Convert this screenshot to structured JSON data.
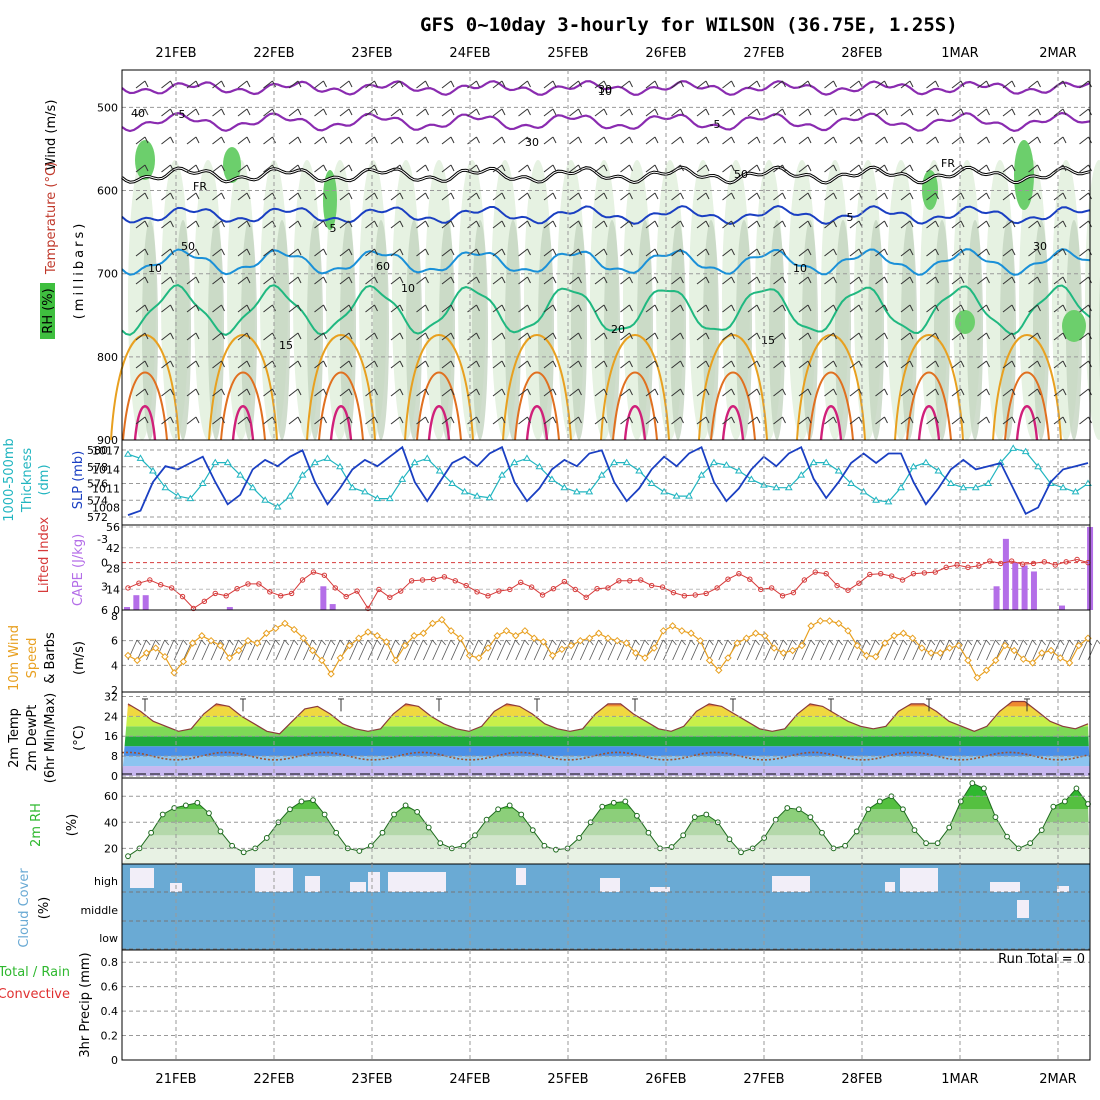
{
  "title": "GFS 0~10day 3-hourly for WILSON (36.75E, 1.25S)",
  "dates": [
    "21FEB",
    "22FEB",
    "23FEB",
    "24FEB",
    "25FEB",
    "26FEB",
    "27FEB",
    "28FEB",
    "1MAR",
    "2MAR"
  ],
  "colors": {
    "wind_label": "#000000",
    "temperature_label": "#c0392b",
    "rh_green": "#3fbf3f",
    "slp": "#1a3fc2",
    "thickness": "#21b5c0",
    "lifted_index": "#d63a3a",
    "cape": "#b46ee8",
    "wind_speed": "#e8a020",
    "rh2m": "#2fb82f",
    "cloud": "#6aaad4",
    "rain": "#2fb82f",
    "convective": "#e03030"
  },
  "panels": {
    "upper": {
      "label_wind": "Wind (m/s)",
      "label_temperature": "Temperature (°C)",
      "label_rh": "RH (%)",
      "label_millibars": "(millibars)",
      "yticks": [
        "500",
        "600",
        "700",
        "800",
        "900"
      ],
      "contour_labels": [
        "-5",
        "-5",
        "FR",
        "FR",
        "5",
        "5",
        "10",
        "10",
        "10",
        "15",
        "15",
        "20"
      ],
      "rh_labels": [
        "40",
        "50",
        "30",
        "60",
        "50",
        "30",
        "30",
        "10"
      ]
    },
    "slp": {
      "label_thickness": "Thickness",
      "label_1000_500": "1000-500mb",
      "label_dm": "(dm)",
      "label_slp": "SLP (mb)",
      "yticks_left": [
        "580",
        "578",
        "576",
        "574",
        "572"
      ],
      "yticks_right": [
        "1017",
        "1014",
        "1011",
        "1008"
      ]
    },
    "cape": {
      "label_li": "Lifted Index",
      "label_cape": "CAPE (J/kg)",
      "yticks_left": [
        "-3",
        "0",
        "3",
        "6"
      ],
      "yticks_right": [
        "56",
        "42",
        "28",
        "14",
        "0"
      ]
    },
    "wind10": {
      "label_10m": "10m Wind",
      "label_speed": "Speed",
      "label_barbs": "& Barbs",
      "label_unit": "(m/s)",
      "yticks": [
        "8",
        "6",
        "4",
        "2"
      ]
    },
    "temp2m": {
      "label_temp": "2m Temp",
      "label_dew": "2m DewPt",
      "label_minmax": "(6hr Min/Max)",
      "label_unit": "(°C)",
      "yticks": [
        "32",
        "24",
        "16",
        "8",
        "0"
      ]
    },
    "rh2m": {
      "label": "2m RH",
      "label_unit": "(%)",
      "yticks": [
        "60",
        "40",
        "20"
      ]
    },
    "cloud": {
      "label": "Cloud Cover",
      "label_unit": "(%)",
      "levels": [
        "high",
        "middle",
        "low"
      ]
    },
    "precip": {
      "label_total": "Total / Rain",
      "label_conv": "Convective",
      "label_unit": "3hr Precip (mm)",
      "yticks": [
        "0.8",
        "0.6",
        "0.4",
        "0.2",
        "0"
      ],
      "run_total": "Run Total = 0"
    }
  },
  "chart_data": [
    {
      "type": "line",
      "title": "SLP (mb) and 1000-500mb Thickness (dm)",
      "x_unit": "3-hourly steps from 20FEB 12Z",
      "series": [
        {
          "name": "SLP (mb)",
          "axis": "right",
          "ylim": [
            1006,
            1018
          ],
          "values": [
            1006.8,
            1007.5,
            1012,
            1014.5,
            1014,
            1015,
            1016,
            1012,
            1008.5,
            1010,
            1014,
            1015.5,
            1014.5,
            1016,
            1017,
            1012,
            1008.5,
            1011,
            1014,
            1015.5,
            1014.5,
            1016,
            1017.5,
            1012,
            1009,
            1012,
            1015,
            1016,
            1014.5,
            1016.5,
            1017.5,
            1012,
            1009,
            1011,
            1014,
            1015.5,
            1014.5,
            1016.5,
            1017,
            1012,
            1009,
            1011,
            1014,
            1016,
            1014.5,
            1016.5,
            1017.5,
            1012,
            1009,
            1011,
            1014,
            1016,
            1014.5,
            1016.5,
            1017.5,
            1012.5,
            1009.5,
            1012,
            1015,
            1016.5,
            1015,
            1016.5,
            1016.5,
            1012,
            1008.5,
            1011,
            1014,
            1015.5,
            1014,
            1014.5,
            1015,
            1011,
            1007,
            1008,
            1012,
            1014,
            1014.5,
            1015
          ]
        },
        {
          "name": "1000-500mb Thickness (dm)",
          "axis": "left",
          "ylim": [
            572,
            581
          ],
          "values": [
            579.5,
            579,
            577.5,
            575.5,
            574.5,
            574.2,
            576,
            578.5,
            578.5,
            577,
            575.5,
            574,
            573.2,
            574.5,
            577,
            578.5,
            579,
            578,
            575.5,
            575,
            574.2,
            574.2,
            576.5,
            578.5,
            579,
            577.5,
            576,
            575,
            574.5,
            574.3,
            577,
            578.5,
            579,
            578,
            576.5,
            575.5,
            575,
            575,
            577,
            578.5,
            578.5,
            577.5,
            576,
            575,
            574.5,
            574.5,
            577,
            578.5,
            578.2,
            577.5,
            576.5,
            575.8,
            575.5,
            575.5,
            577,
            578.5,
            578.5,
            577.5,
            576,
            575,
            574,
            573.8,
            575.5,
            578,
            578.5,
            577.5,
            576,
            575.5,
            575.5,
            576,
            578.5,
            580.2,
            579.8,
            578,
            576,
            575.5,
            575,
            576
          ]
        }
      ]
    },
    {
      "type": "bar",
      "title": "CAPE (J/kg) and Lifted Index",
      "ylabel": "CAPE (J/kg)",
      "ylim": [
        0,
        56
      ],
      "bars": [
        [
          0,
          2
        ],
        [
          1,
          10
        ],
        [
          2,
          10
        ],
        [
          11,
          2
        ],
        [
          21,
          16
        ],
        [
          22,
          4
        ],
        [
          93,
          16
        ],
        [
          94,
          48
        ],
        [
          95,
          32
        ],
        [
          96,
          30
        ],
        [
          97,
          26
        ],
        [
          100,
          3
        ],
        [
          103,
          56
        ]
      ],
      "lifted_index": {
        "ylim": [
          -3.5,
          6
        ],
        "values": [
          3.2,
          2.6,
          2.2,
          2.8,
          3.2,
          4.3,
          5.8,
          4.9,
          3.9,
          4.2,
          3.3,
          2.7,
          2.7,
          3.7,
          4.2,
          3.9,
          2.2,
          1.2,
          1.6,
          3.2,
          4.3,
          3.6,
          5.8,
          3.4,
          4.4,
          3.6,
          2.3,
          2.2,
          2.1,
          1.8,
          2.3,
          2.9,
          3.7,
          4.2,
          3.6,
          3.4,
          2.5,
          3.1,
          4.1,
          3.3,
          2.4,
          3.4,
          4.4,
          3.3,
          3.2,
          2.3,
          2.3,
          2.2,
          2.9,
          3.1,
          3.8,
          4.2,
          4.1,
          3.9,
          3.2,
          2.1,
          1.4,
          2.1,
          3.4,
          3.2,
          4.2,
          3.8,
          2.2,
          1.2,
          1.4,
          2.9,
          3.5,
          2.6,
          1.5,
          1.4,
          1.7,
          2.2,
          1.4,
          1.3,
          1.2,
          0.6,
          0.3,
          0.6,
          0.4,
          -0.2,
          0.1,
          -0.2,
          0.2,
          0.1,
          -0.1,
          0.3,
          -0.1,
          -0.4,
          0.0
        ]
      }
    },
    {
      "type": "line",
      "title": "10m Wind Speed (m/s)",
      "ylim": [
        2,
        8
      ],
      "values": [
        4.8,
        4.4,
        5.0,
        5.4,
        4.7,
        3.4,
        4.3,
        5.8,
        6.4,
        6.0,
        5.6,
        4.6,
        5.2,
        6.0,
        5.8,
        6.6,
        7.0,
        7.4,
        6.9,
        6.2,
        5.2,
        4.4,
        3.3,
        4.6,
        5.6,
        6.2,
        6.7,
        6.4,
        5.9,
        4.4,
        5.6,
        6.4,
        6.6,
        7.4,
        7.7,
        6.8,
        6.2,
        4.8,
        4.6,
        5.4,
        6.4,
        6.8,
        6.4,
        6.8,
        6.2,
        5.9,
        4.8,
        5.3,
        5.6,
        6.0,
        6.2,
        6.6,
        6.2,
        6.0,
        5.8,
        5.0,
        4.6,
        5.4,
        6.8,
        7.2,
        6.8,
        6.6,
        6.0,
        4.4,
        3.6,
        4.6,
        5.8,
        6.2,
        6.6,
        6.4,
        5.4,
        5.0,
        5.2,
        5.6,
        7.2,
        7.6,
        7.6,
        7.4,
        6.8,
        5.6,
        4.8,
        4.7,
        5.8,
        6.4,
        6.6,
        6.2,
        5.4,
        5.0,
        5.0,
        5.4,
        5.6,
        4.4,
        3.0,
        3.6,
        4.4,
        5.6,
        5.2,
        4.5,
        4.2,
        5.0,
        5.2,
        4.6,
        4.2,
        5.6,
        6.2
      ]
    },
    {
      "type": "area",
      "title": "2m Temp and 2m DewPt (°C)",
      "ylim": [
        0,
        33
      ],
      "temperature": [
        29,
        26,
        22,
        20,
        18,
        19,
        25,
        29,
        28,
        24,
        21,
        18,
        17,
        22,
        27,
        28,
        25,
        21,
        19,
        18,
        19,
        25,
        29,
        28,
        24,
        21,
        19,
        18,
        20,
        26,
        29,
        28,
        25,
        21,
        19,
        18,
        19,
        25,
        29,
        29,
        25,
        22,
        19,
        18,
        20,
        26,
        29,
        28,
        25,
        22,
        19,
        18,
        19,
        25,
        29,
        28,
        25,
        22,
        20,
        19,
        20,
        26,
        29,
        29,
        26,
        22,
        20,
        18,
        20,
        26,
        30,
        30,
        26,
        22,
        20,
        19,
        21
      ]
    },
    {
      "type": "area",
      "title": "2m RH (%)",
      "ylim": [
        8,
        74
      ],
      "values": [
        14,
        20,
        32,
        46,
        51,
        53,
        55,
        47,
        33,
        22,
        17,
        20,
        28,
        40,
        50,
        56,
        57,
        46,
        32,
        20,
        18,
        22,
        32,
        46,
        53,
        48,
        36,
        24,
        20,
        22,
        30,
        42,
        50,
        53,
        46,
        34,
        22,
        19,
        20,
        28,
        40,
        52,
        55,
        56,
        45,
        32,
        20,
        21,
        30,
        44,
        46,
        40,
        27,
        17,
        20,
        28,
        42,
        51,
        50,
        44,
        32,
        20,
        22,
        33,
        50,
        56,
        60,
        50,
        34,
        24,
        24,
        36,
        56,
        70,
        66,
        44,
        29,
        20,
        24,
        34,
        52,
        56,
        66,
        54
      ]
    },
    {
      "type": "table",
      "title": "Cloud Cover (%)",
      "rows": [
        "high",
        "middle",
        "low"
      ]
    },
    {
      "type": "bar",
      "title": "3hr Precip (mm)",
      "ylim": [
        0,
        0.9
      ],
      "values": [],
      "annotation": "Run Total = 0"
    }
  ]
}
